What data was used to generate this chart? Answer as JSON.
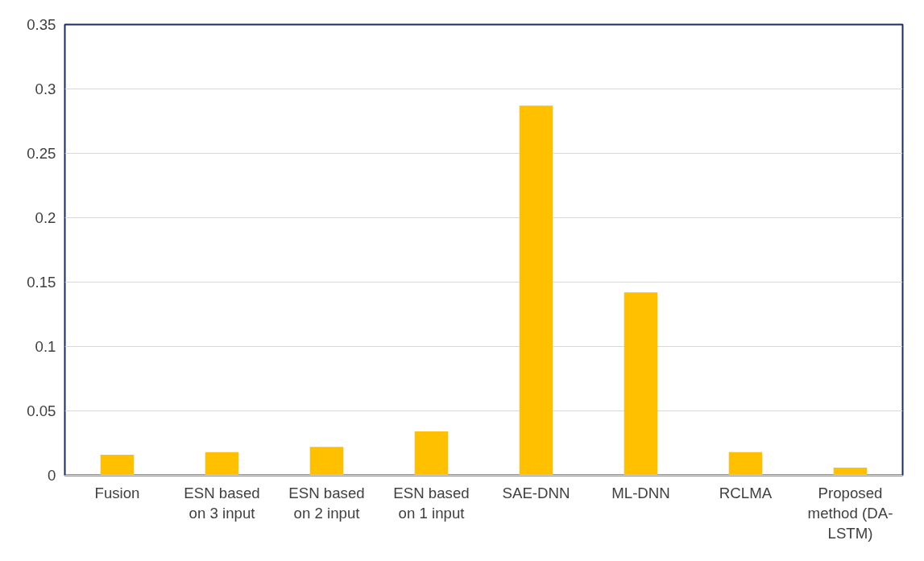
{
  "chart_data": {
    "type": "bar",
    "categories": [
      "Fusion",
      "ESN based on 3 input",
      "ESN based on 2 input",
      "ESN based on 1 input",
      "SAE-DNN",
      "ML-DNN",
      "RCLMA",
      "Proposed method (DA-LSTM)"
    ],
    "values": [
      0.016,
      0.018,
      0.022,
      0.034,
      0.287,
      0.142,
      0.018,
      0.006
    ],
    "color": "#ffc000",
    "ylim": [
      0,
      0.35
    ],
    "yticks": [
      0,
      0.05,
      0.1,
      0.15,
      0.2,
      0.25,
      0.3,
      0.35
    ],
    "grid": "y"
  }
}
